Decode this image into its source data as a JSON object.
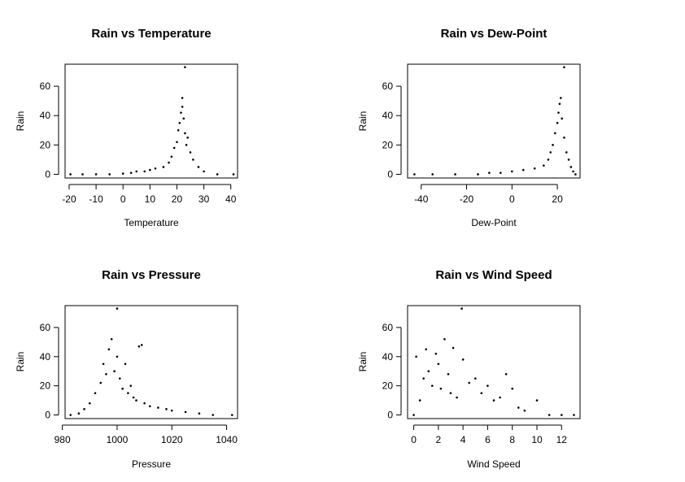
{
  "chart_data": [
    {
      "type": "scatter",
      "title": "Rain vs Temperature",
      "xlabel": "Temperature",
      "ylabel": "Rain",
      "xlim": [
        -21.5,
        42.5
      ],
      "ylim": [
        -2.5,
        75
      ],
      "xticks": [
        -20,
        -10,
        0,
        10,
        20,
        30,
        40
      ],
      "yticks": [
        0,
        20,
        40,
        60
      ],
      "points": [
        [
          -19.5,
          0
        ],
        [
          -15,
          0
        ],
        [
          -10,
          0
        ],
        [
          -5,
          0
        ],
        [
          0,
          0.5
        ],
        [
          3,
          1
        ],
        [
          5,
          2
        ],
        [
          8,
          2
        ],
        [
          10,
          3
        ],
        [
          12,
          4
        ],
        [
          15,
          5
        ],
        [
          17,
          8
        ],
        [
          18,
          12
        ],
        [
          19,
          18
        ],
        [
          20,
          22
        ],
        [
          20.5,
          30
        ],
        [
          21,
          35
        ],
        [
          21.5,
          42
        ],
        [
          22,
          46
        ],
        [
          22,
          52
        ],
        [
          22.5,
          38
        ],
        [
          23,
          28
        ],
        [
          23.5,
          20
        ],
        [
          24,
          25
        ],
        [
          25,
          15
        ],
        [
          26,
          10
        ],
        [
          28,
          5
        ],
        [
          30,
          2
        ],
        [
          35,
          0
        ],
        [
          41,
          0
        ],
        [
          23,
          73
        ]
      ]
    },
    {
      "type": "scatter",
      "title": "Rain vs Dew-Point",
      "xlabel": "Dew-Point",
      "ylabel": "Rain",
      "xlim": [
        -46,
        30
      ],
      "ylim": [
        -2.5,
        75
      ],
      "xticks": [
        -40,
        -20,
        0,
        20
      ],
      "yticks": [
        0,
        20,
        40,
        60
      ],
      "points": [
        [
          -43,
          0
        ],
        [
          -35,
          0
        ],
        [
          -25,
          0
        ],
        [
          -15,
          0
        ],
        [
          -10,
          1
        ],
        [
          -5,
          1
        ],
        [
          0,
          2
        ],
        [
          5,
          3
        ],
        [
          10,
          4
        ],
        [
          14,
          6
        ],
        [
          16,
          10
        ],
        [
          17,
          15
        ],
        [
          18,
          20
        ],
        [
          19,
          28
        ],
        [
          20,
          35
        ],
        [
          20.5,
          42
        ],
        [
          21,
          48
        ],
        [
          21.5,
          52
        ],
        [
          22,
          38
        ],
        [
          23,
          25
        ],
        [
          24,
          15
        ],
        [
          25,
          10
        ],
        [
          26,
          5
        ],
        [
          27,
          2
        ],
        [
          28,
          0
        ],
        [
          23,
          73
        ]
      ]
    },
    {
      "type": "scatter",
      "title": "Rain vs Pressure",
      "xlabel": "Pressure",
      "ylabel": "Rain",
      "xlim": [
        981,
        1044
      ],
      "ylim": [
        -2.5,
        75
      ],
      "xticks": [
        980,
        1000,
        1020,
        1040
      ],
      "yticks": [
        0,
        20,
        40,
        60
      ],
      "points": [
        [
          983,
          0
        ],
        [
          986,
          1
        ],
        [
          988,
          4
        ],
        [
          990,
          8
        ],
        [
          992,
          15
        ],
        [
          994,
          22
        ],
        [
          995,
          35
        ],
        [
          996,
          28
        ],
        [
          997,
          45
        ],
        [
          998,
          52
        ],
        [
          999,
          30
        ],
        [
          1000,
          40
        ],
        [
          1001,
          25
        ],
        [
          1002,
          18
        ],
        [
          1003,
          35
        ],
        [
          1004,
          15
        ],
        [
          1005,
          20
        ],
        [
          1006,
          12
        ],
        [
          1007,
          10
        ],
        [
          1008,
          47
        ],
        [
          1009,
          48
        ],
        [
          1010,
          8
        ],
        [
          1012,
          6
        ],
        [
          1015,
          5
        ],
        [
          1018,
          4
        ],
        [
          1020,
          3
        ],
        [
          1025,
          2
        ],
        [
          1030,
          1
        ],
        [
          1035,
          0
        ],
        [
          1042,
          0
        ],
        [
          1000,
          73
        ]
      ]
    },
    {
      "type": "scatter",
      "title": "Rain vs Wind Speed",
      "xlabel": "Wind Speed",
      "ylabel": "Rain",
      "xlim": [
        -0.5,
        13.5
      ],
      "ylim": [
        -2.5,
        75
      ],
      "xticks": [
        0,
        2,
        4,
        6,
        8,
        10,
        12
      ],
      "yticks": [
        0,
        20,
        40,
        60
      ],
      "points": [
        [
          0,
          0
        ],
        [
          0.2,
          40
        ],
        [
          0.5,
          10
        ],
        [
          0.8,
          25
        ],
        [
          1,
          45
        ],
        [
          1.2,
          30
        ],
        [
          1.5,
          20
        ],
        [
          1.8,
          42
        ],
        [
          2,
          35
        ],
        [
          2.2,
          18
        ],
        [
          2.5,
          52
        ],
        [
          2.8,
          28
        ],
        [
          3,
          15
        ],
        [
          3.2,
          46
        ],
        [
          3.5,
          12
        ],
        [
          4,
          38
        ],
        [
          4.5,
          22
        ],
        [
          5,
          25
        ],
        [
          5.5,
          15
        ],
        [
          6,
          20
        ],
        [
          6.5,
          10
        ],
        [
          7,
          12
        ],
        [
          7.5,
          28
        ],
        [
          8,
          18
        ],
        [
          8.5,
          5
        ],
        [
          9,
          3
        ],
        [
          10,
          10
        ],
        [
          11,
          0
        ],
        [
          12,
          0
        ],
        [
          13,
          0
        ],
        [
          3.9,
          73
        ]
      ]
    }
  ]
}
